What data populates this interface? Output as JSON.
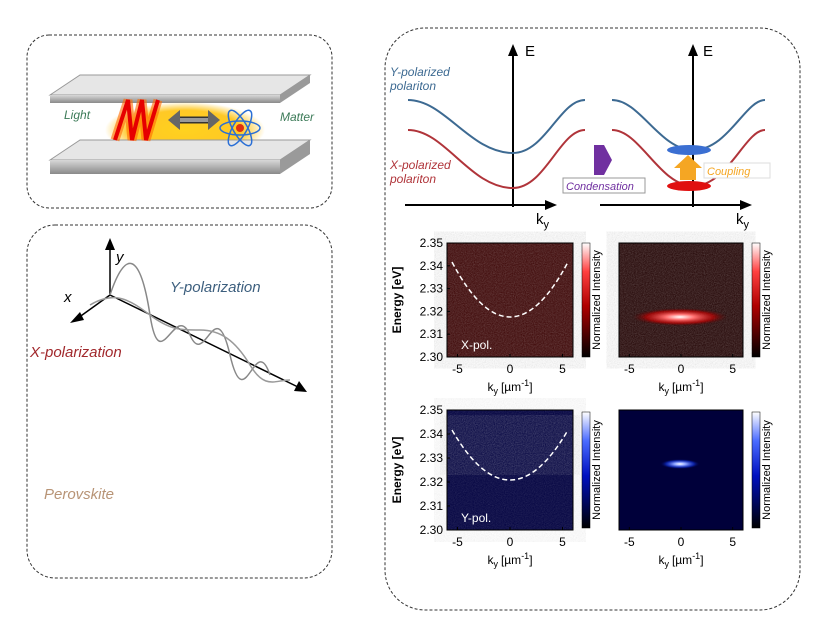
{
  "cavity": {
    "left_label": "Light",
    "right_label": "Matter"
  },
  "polarization": {
    "axis_y": "y",
    "axis_x": "x",
    "y_label": "Y-polarization",
    "x_label": "X-polarization",
    "material": "Perovskite"
  },
  "dispersion": {
    "energy_axis": "E",
    "k_main": "k",
    "k_sub": "y",
    "upper_label": [
      "Y-polarized",
      "polariton"
    ],
    "lower_label": [
      "X-polarized",
      "polariton"
    ],
    "arrow_label": "Condensation",
    "coupling_label": "Coupling"
  },
  "maps": {
    "y_axis_label": "Energy [eV]",
    "yticks": [
      "2.35",
      "2.34",
      "2.33",
      "2.32",
      "2.31",
      "2.30"
    ],
    "xticks": [
      "-5",
      "0",
      "5"
    ],
    "x_axis_label": {
      "main": "k",
      "sub": "y",
      "unit": "[µm",
      "exp": "-1",
      "close": "]"
    },
    "colorbar_label": "Normalized Intensity",
    "panel_labels": [
      "X-pol.",
      "Y-pol."
    ]
  }
}
